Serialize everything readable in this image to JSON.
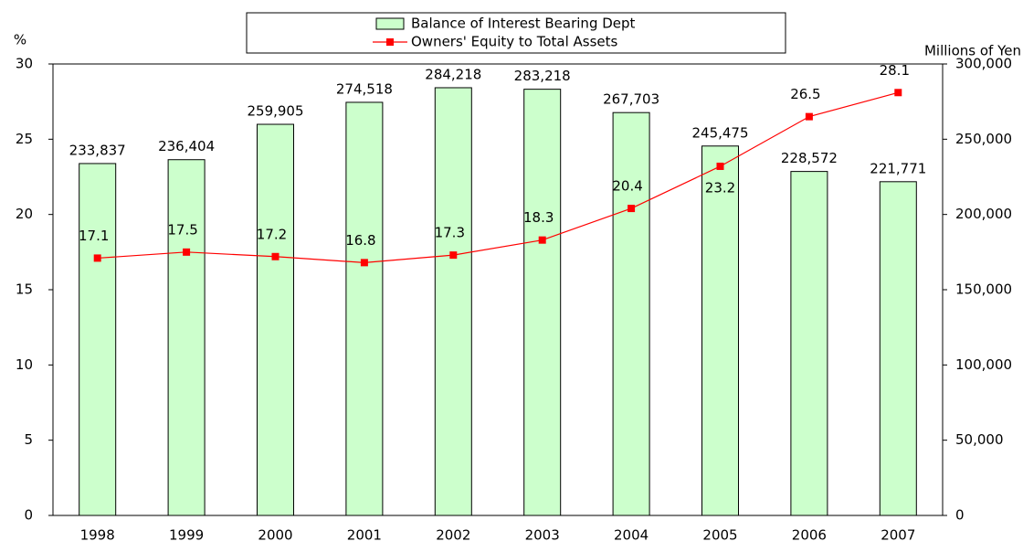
{
  "chart_data": {
    "type": "bar-line",
    "ylabel": "%",
    "y2label": "Millions of Yen",
    "categories": [
      "1998",
      "1999",
      "2000",
      "2001",
      "2002",
      "2003",
      "2004",
      "2005",
      "2006",
      "2007"
    ],
    "ylim": [
      0,
      30
    ],
    "yticks": [
      0,
      5,
      10,
      15,
      20,
      25,
      30
    ],
    "y2lim": [
      0,
      300000
    ],
    "y2ticks": [
      0,
      {
        "value": 50000,
        "label": "50,000"
      },
      {
        "value": 100000,
        "label": "100,000"
      },
      {
        "value": 150000,
        "label": "150,000"
      },
      {
        "value": 200000,
        "label": "200,000"
      },
      {
        "value": 250000,
        "label": "250,000"
      },
      {
        "value": 300000,
        "label": "300,000"
      }
    ],
    "series": [
      {
        "name": "Balance of Interest Bearing Dept",
        "type": "bar",
        "axis": "y2",
        "color": "#ccffcc",
        "values": [
          233837,
          236404,
          259905,
          274518,
          284218,
          283218,
          267703,
          245475,
          228572,
          221771
        ],
        "value_labels": [
          "233,837",
          "236,404",
          "259,905",
          "274,518",
          "284,218",
          "283,218",
          "267,703",
          "245,475",
          "228,572",
          "221,771"
        ]
      },
      {
        "name": "Owners' Equity to Total Assets",
        "type": "line",
        "axis": "y",
        "color": "#ff0000",
        "values": [
          17.1,
          17.5,
          17.2,
          16.8,
          17.3,
          18.3,
          20.4,
          23.2,
          26.5,
          28.1
        ]
      }
    ]
  }
}
